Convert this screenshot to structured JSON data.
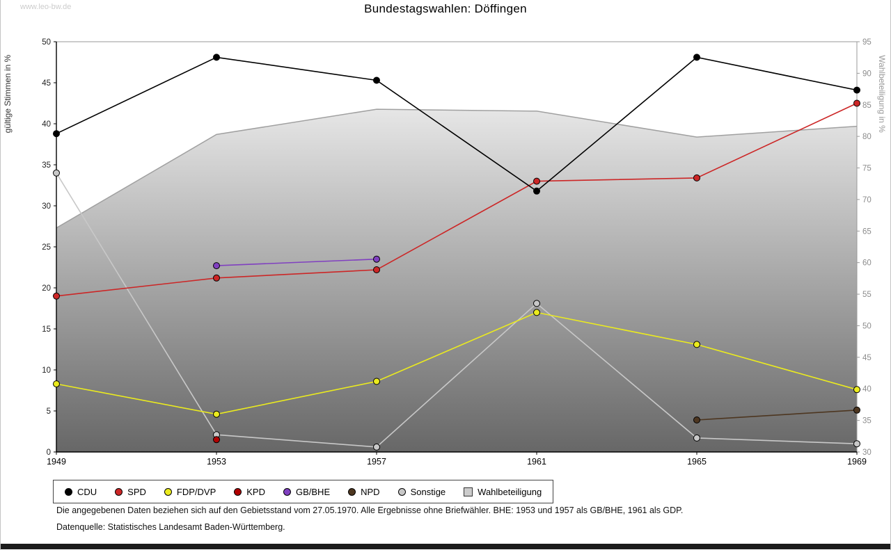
{
  "watermark": "www.leo-bw.de",
  "title": "Bundestagswahlen: Döffingen",
  "footnotes": {
    "line1": "Die angegebenen Daten beziehen sich auf den Gebietsstand vom 27.05.1970. Alle Ergebnisse ohne Briefwähler. BHE: 1953 und 1957 als GB/BHE, 1961 als GDP.",
    "line2": "Datenquelle: Statistisches Landesamt Baden-Württemberg."
  },
  "chart_data": {
    "type": "line",
    "title": "Bundestagswahlen: Döffingen",
    "x": [
      1949,
      1953,
      1957,
      1961,
      1965,
      1969
    ],
    "xlabel": "",
    "ylabel_left": "gültige Stimmen in %",
    "ylabel_right": "Wahlbeteiligung in %",
    "ylim_left": [
      0,
      50
    ],
    "ylim_right": [
      30,
      95
    ],
    "yticks_left": [
      0,
      5,
      10,
      15,
      20,
      25,
      30,
      35,
      40,
      45,
      50
    ],
    "yticks_right": [
      30,
      35,
      40,
      45,
      50,
      55,
      60,
      65,
      70,
      75,
      80,
      85,
      90,
      95
    ],
    "grid": false,
    "legend_position": "bottom",
    "colors": {
      "area_edge": "#a0a0a0",
      "area_gradient_bottom": "#676767",
      "area_gradient_top": "#ffffff",
      "axis_left": "#000000",
      "axis_right": "#999999"
    },
    "series": [
      {
        "name": "CDU",
        "axis": "left",
        "kind": "line",
        "color": "#000000",
        "values": [
          38.8,
          48.1,
          45.3,
          31.8,
          48.1,
          44.1
        ]
      },
      {
        "name": "SPD",
        "axis": "left",
        "kind": "line",
        "color": "#cc2626",
        "values": [
          19.0,
          21.2,
          22.2,
          33.0,
          33.4,
          42.5
        ]
      },
      {
        "name": "FDP/DVP",
        "axis": "left",
        "kind": "line",
        "color": "#ebeb1e",
        "values": [
          8.3,
          4.6,
          8.6,
          17.0,
          13.1,
          7.6
        ]
      },
      {
        "name": "KPD",
        "axis": "left",
        "kind": "line",
        "color": "#b00000",
        "values": [
          null,
          1.5,
          null,
          null,
          null,
          null
        ]
      },
      {
        "name": "GB/BHE",
        "axis": "left",
        "kind": "line",
        "color": "#8040c0",
        "values": [
          null,
          22.7,
          23.5,
          null,
          null,
          null
        ]
      },
      {
        "name": "NPD",
        "axis": "left",
        "kind": "line",
        "color": "#4d3620",
        "values": [
          null,
          null,
          null,
          null,
          3.9,
          5.1
        ]
      },
      {
        "name": "Sonstige",
        "axis": "left",
        "kind": "line",
        "color": "#c8c8c8",
        "values": [
          34.0,
          2.1,
          0.6,
          18.1,
          1.7,
          1.0
        ]
      },
      {
        "name": "Wahlbeteiligung",
        "axis": "right",
        "kind": "area",
        "color": "#c8c8c8",
        "values": [
          65.5,
          80.3,
          84.3,
          84.0,
          79.9,
          81.6
        ]
      }
    ]
  }
}
